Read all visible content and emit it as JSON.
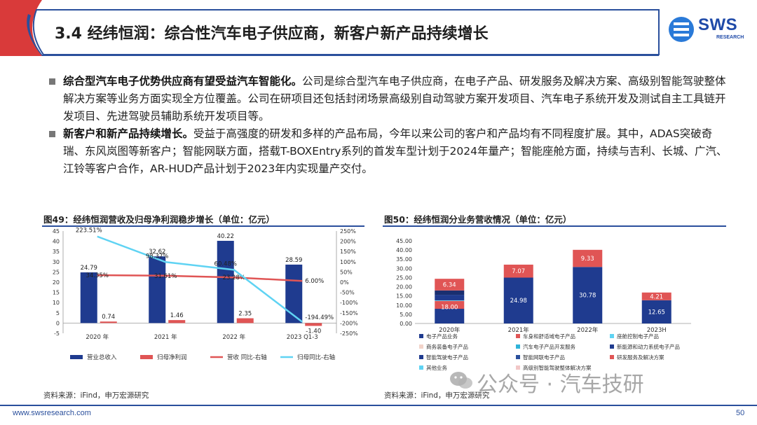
{
  "header": {
    "title": "3.4 经纬恒润：综合性汽车电子供应商，新客户新产品持续增长",
    "logo_text": "SWS",
    "logo_sub": "RESEARCH"
  },
  "bullets": [
    {
      "lead": "综合型汽车电子优势供应商有望受益汽车智能化。",
      "body": "公司是综合型汽车电子供应商，在电子产品、研发服务及解决方案、高级别智能驾驶整体解决方案等业务方面实现全方位覆盖。公司在研项目还包括封闭场景高级别自动驾驶方案开发项目、汽车电子系统开发及测试自主工具链开发项目、先进驾驶员辅助系统开发项目等。"
    },
    {
      "lead": "新客户和新产品持续增长。",
      "body": "受益于高强度的研发和多样的产品布局，今年以来公司的客户和产品均有不同程度扩展。其中，ADAS突破奇瑞、东风岚图等新客户；智能网联方面，搭载T-BOXEntry系列的首发车型计划于2024年量产；智能座舱方面，持续与吉利、长城、广汽、江铃等客户合作，AR-HUD产品计划于2023年内实现量产交付。"
    }
  ],
  "chart49": {
    "title": "图49：经纬恒润营收及归母净利润稳步增长（单位：亿元）",
    "source": "资料来源：iFind，申万宏源研究"
  },
  "chart50": {
    "title": "图50：经纬恒润分业务营收情况（单位：亿元）",
    "source": "资料来源：iFind，申万宏源研究"
  },
  "footer": {
    "url": "www.swsresearch.com",
    "page": "50"
  },
  "watermark": "公众号 · 汽车技研",
  "colors": {
    "navy": "#1f3b8f",
    "red": "#e05555",
    "cyan": "#5fd3f3",
    "accent": "#2a4f9c"
  },
  "chart_data": [
    {
      "type": "bar",
      "categories": [
        "2020 年",
        "2021 年",
        "2022 年",
        "2023 Q1-3"
      ],
      "y_left": {
        "ylim": [
          -5,
          45
        ],
        "ticks": [
          -5,
          0,
          5,
          10,
          15,
          20,
          25,
          30,
          35,
          40,
          45
        ]
      },
      "y_right": {
        "ylim": [
          -250,
          250
        ],
        "ticks": [
          "-250%",
          "-200%",
          "-150%",
          "-100%",
          "-50%",
          "0%",
          "50%",
          "100%",
          "150%",
          "200%",
          "250%"
        ]
      },
      "series": [
        {
          "name": "营业总收入",
          "kind": "bar",
          "axis": "left",
          "values": [
            24.79,
            32.62,
            40.22,
            28.59
          ],
          "labels": [
            "24.79",
            "32.62",
            "40.22",
            "28.59"
          ],
          "color": "#1f3b8f"
        },
        {
          "name": "归母净利润",
          "kind": "bar",
          "axis": "left",
          "values": [
            0.74,
            1.46,
            2.35,
            -1.4
          ],
          "labels": [
            "0.74",
            "1.46",
            "2.35",
            "-1.40"
          ],
          "color": "#e05555"
        },
        {
          "name": "营收 同比-右轴",
          "kind": "line",
          "axis": "right",
          "values": [
            34.35,
            31.61,
            23.28,
            6.0
          ],
          "labels": [
            "34.35%",
            "31.61%",
            "23.28%",
            "6.00%"
          ],
          "color": "#e05555"
        },
        {
          "name": "归母同比-右轴",
          "kind": "line",
          "axis": "right",
          "values": [
            223.51,
            98.37,
            60.48,
            -194.49
          ],
          "labels": [
            "223.51%",
            "98.37%",
            "60.48%",
            "-194.49%"
          ],
          "color": "#5fd3f3"
        }
      ]
    },
    {
      "type": "bar",
      "stacked": true,
      "categories": [
        "2020年",
        "2021年",
        "2022年",
        "2023H"
      ],
      "ylim": [
        0,
        45
      ],
      "y_ticks": [
        "0.00",
        "5.00",
        "10.00",
        "15.00",
        "20.00",
        "25.00",
        "30.00",
        "35.00",
        "40.00",
        "45.00"
      ],
      "series": [
        {
          "name": "电子产品业务",
          "color": "#1f3b8f",
          "values": [
            18.0,
            24.98,
            30.78,
            12.65
          ],
          "labels": [
            "18.00",
            "24.98",
            "30.78",
            "12.65"
          ]
        },
        {
          "name": "研发服务及解决方案",
          "color": "#e05555",
          "values": [
            6.34,
            7.07,
            9.33,
            4.21
          ],
          "labels": [
            "6.34",
            "7.07",
            "9.33",
            "4.21"
          ]
        },
        {
          "name": "车身和舒适域电子产品",
          "color": "#e05555",
          "values": [
            8.0,
            0,
            0,
            0
          ]
        },
        {
          "name": "座舱控制电子产品",
          "color": "#5fd3f3",
          "values": [
            0.3,
            0,
            0,
            0
          ]
        },
        {
          "name": "智能驾驶电子产品",
          "color": "#1f3b8f",
          "values": [
            3.0,
            0,
            0,
            0
          ]
        },
        {
          "name": "智能网联电子产品",
          "color": "#1f3b8f",
          "values": [
            2.8,
            0,
            0,
            0
          ]
        },
        {
          "name": "新能源和动力系统电子产品",
          "color": "#1f3b8f",
          "values": [
            3.5,
            0,
            0,
            0
          ]
        }
      ],
      "legend": [
        {
          "name": "电子产品业务",
          "color": "#1f3b8f"
        },
        {
          "name": "车身和舒适域电子产品",
          "color": "#e05555"
        },
        {
          "name": "座舱控制电子产品",
          "color": "#5fd3f3"
        },
        {
          "name": "商务装备电子产品",
          "color": "#f2d3c9"
        },
        {
          "name": "汽车电子产品开发服务",
          "color": "#2fb3d9"
        },
        {
          "name": "新能源和动力系统电子产品",
          "color": "#1f3b8f"
        },
        {
          "name": "智能驾驶电子产品",
          "color": "#1f3b8f"
        },
        {
          "name": "智能网联电子产品",
          "color": "#2a4f9c"
        },
        {
          "name": "研发服务及解决方案",
          "color": "#e05555"
        },
        {
          "name": "其他业务",
          "color": "#5fd3f3"
        },
        {
          "name": "高级别智能驾驶整体解决方案",
          "color": "#f2c7c7"
        }
      ]
    }
  ]
}
